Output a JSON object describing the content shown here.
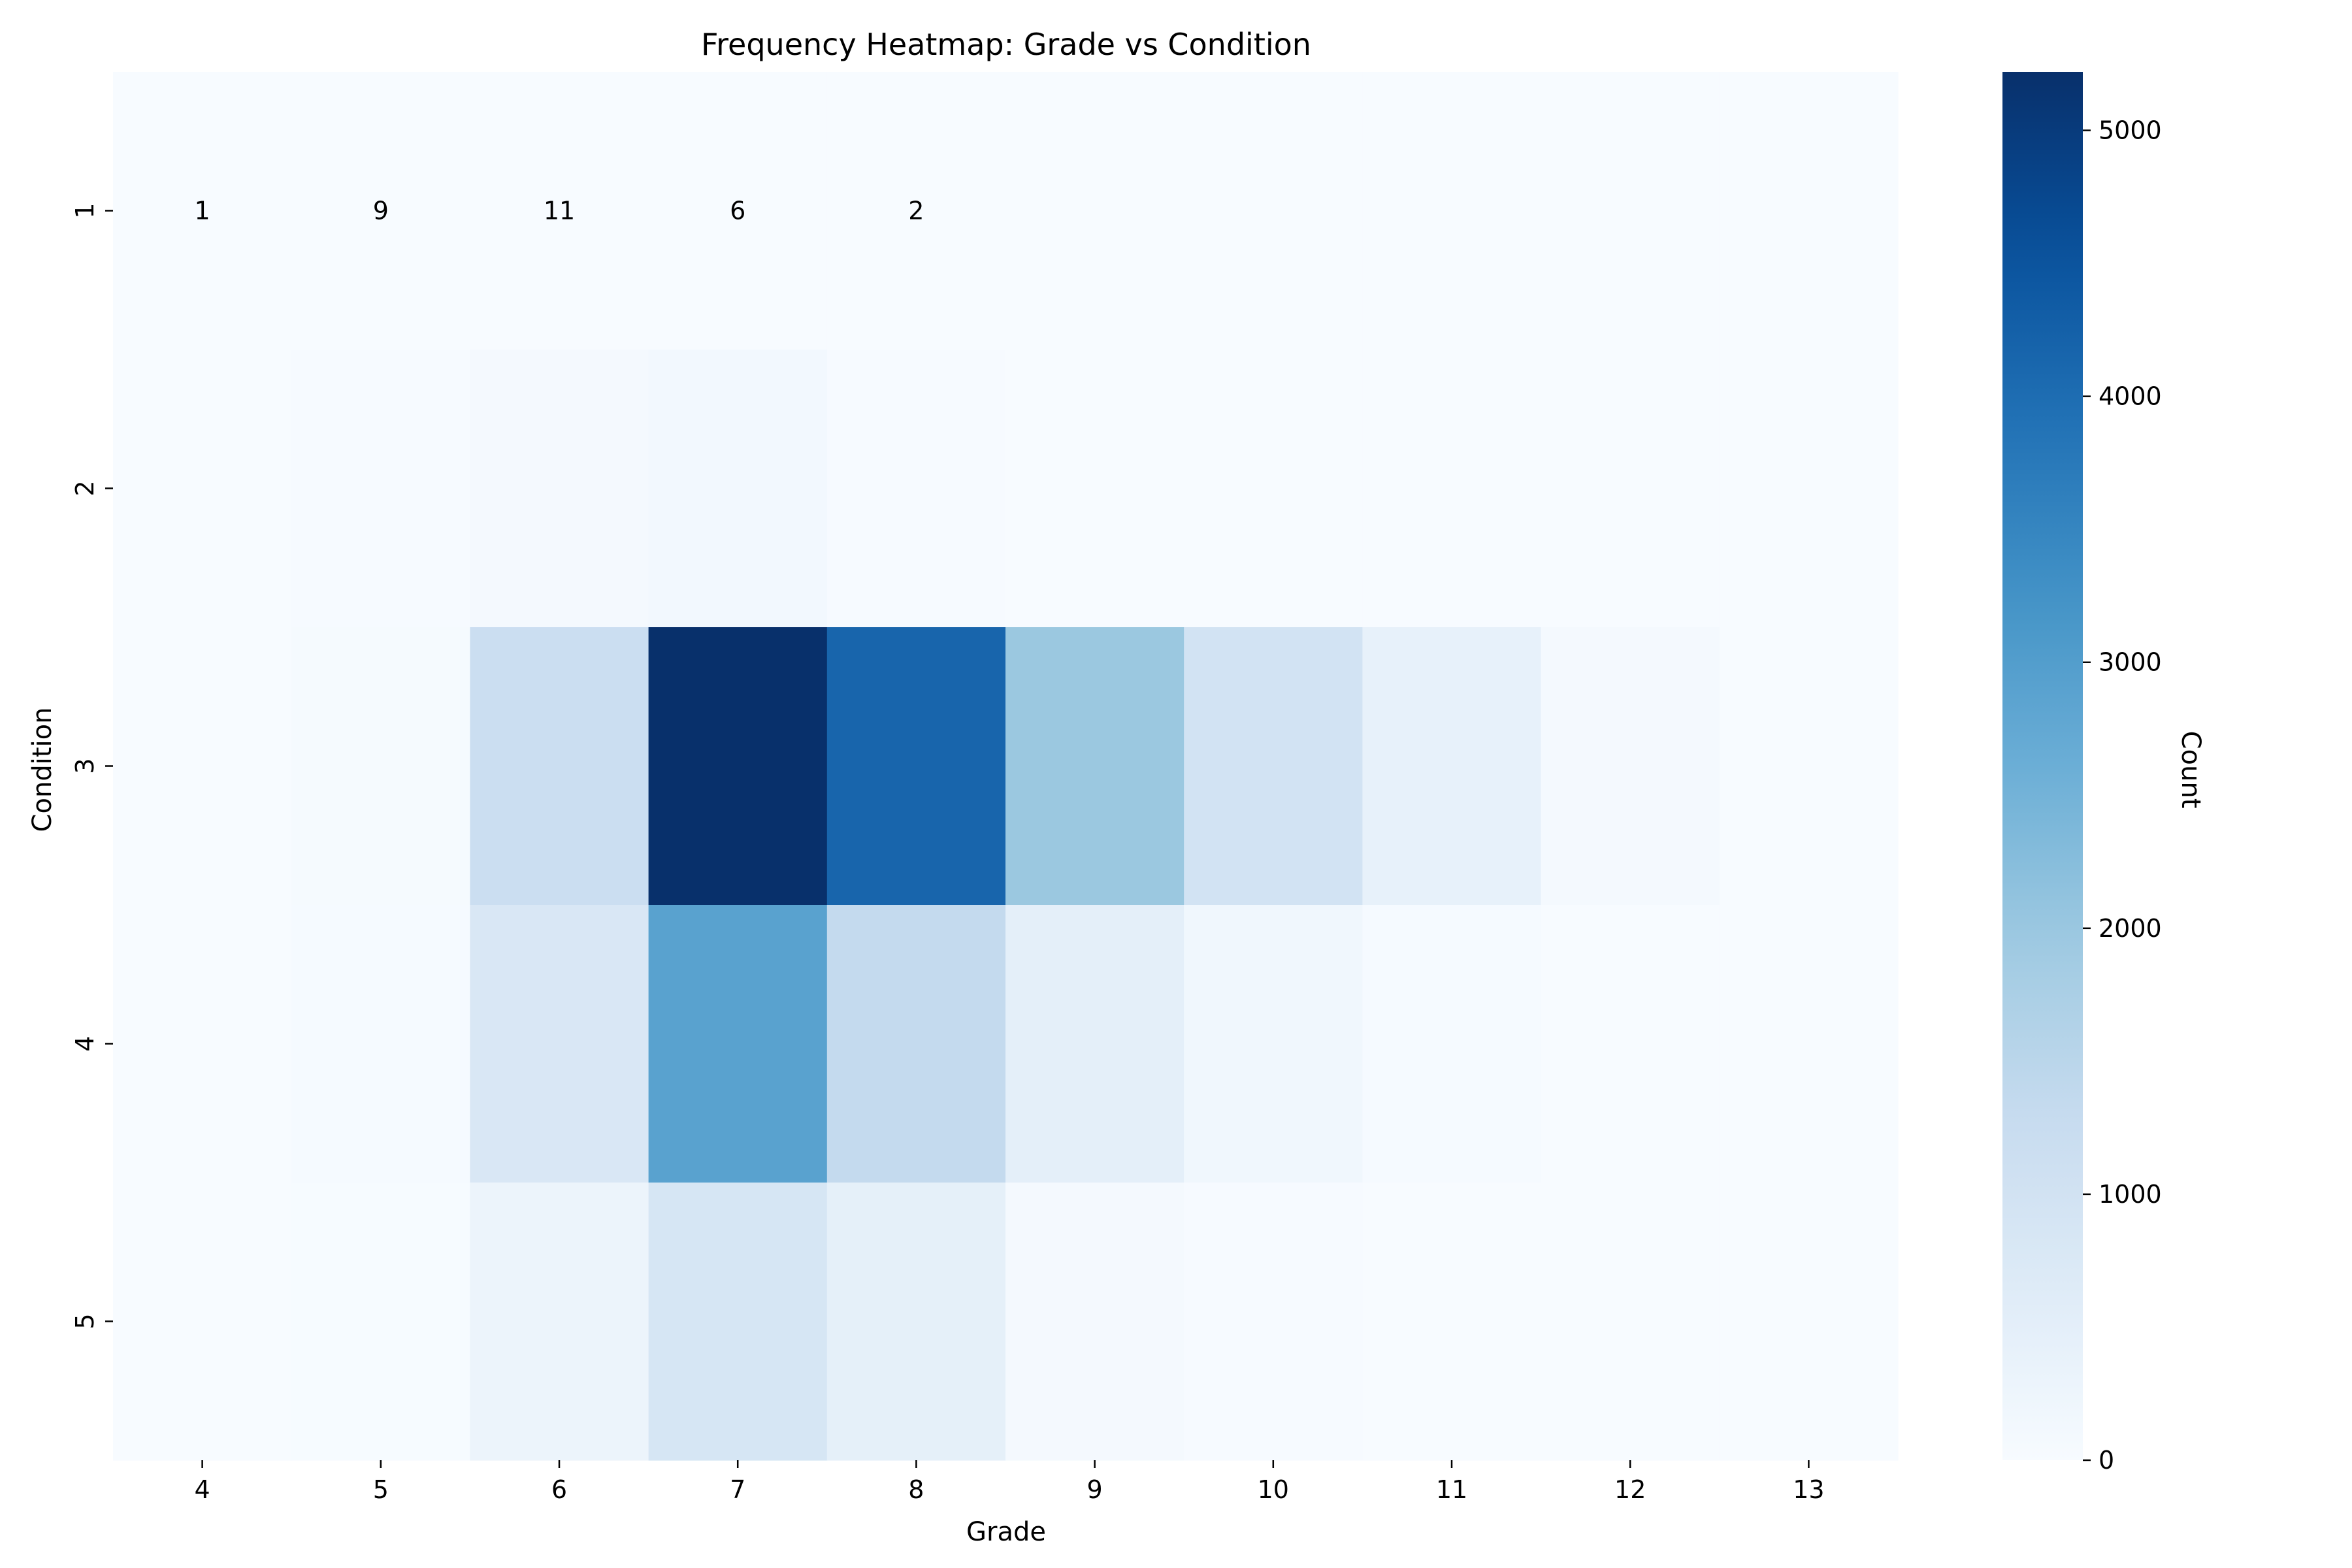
{
  "chart_data": {
    "type": "heatmap",
    "title": "Frequency Heatmap: Grade vs Condition",
    "xlabel": "Grade",
    "ylabel": "Condition",
    "x_categories": [
      "4",
      "5",
      "6",
      "7",
      "8",
      "9",
      "10",
      "11",
      "12",
      "13"
    ],
    "y_categories": [
      "1",
      "2",
      "3",
      "4",
      "5"
    ],
    "values": [
      [
        1,
        9,
        11,
        6,
        2,
        0,
        0,
        0,
        0,
        0
      ],
      [
        3,
        28,
        90,
        120,
        22,
        5,
        1,
        0,
        0,
        0
      ],
      [
        4,
        60,
        1180,
        5220,
        4150,
        2000,
        970,
        420,
        70,
        4
      ],
      [
        2,
        40,
        800,
        2900,
        1330,
        500,
        180,
        40,
        5,
        1
      ],
      [
        0,
        15,
        300,
        870,
        460,
        70,
        30,
        8,
        2,
        0
      ]
    ],
    "annotated_row": "1",
    "colormap": "Blues",
    "colorbar": {
      "label": "Count",
      "range": [
        0,
        5220
      ],
      "ticks": [
        "0",
        "1000",
        "2000",
        "3000",
        "4000",
        "5000"
      ]
    },
    "grid": false
  }
}
